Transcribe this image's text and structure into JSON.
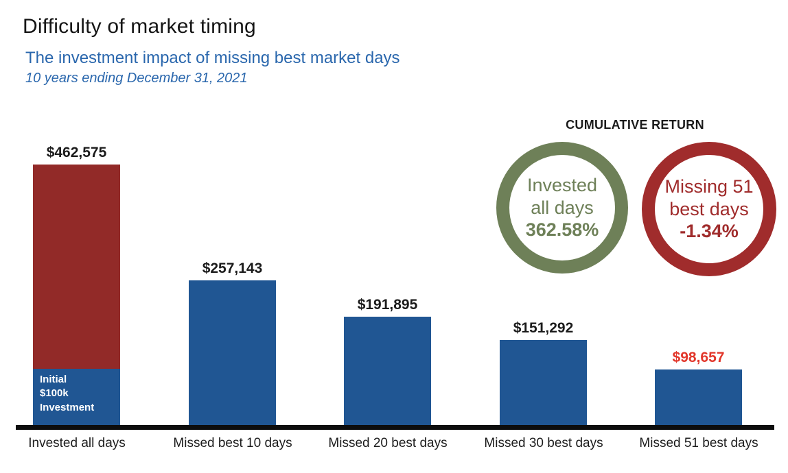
{
  "header": {
    "title": "Difficulty of market timing",
    "subtitle": "The investment impact of missing best market days",
    "period": "10 years ending December 31, 2021"
  },
  "cumulative_return": {
    "heading": "CUMULATIVE RETURN",
    "circles": [
      {
        "name": "invested-all-days",
        "line1": "Invested",
        "line2": "all days",
        "value": "362.58%",
        "color": "#6e8058"
      },
      {
        "name": "missing-51-best-days",
        "line1": "Missing 51",
        "line2": "best days",
        "value": "-1.34%",
        "color": "#a02c2c"
      }
    ]
  },
  "chart_data": {
    "type": "bar",
    "title": "Difficulty of market timing",
    "subtitle": "The investment impact of missing best market days",
    "period": "10 years ending December 31, 2021",
    "categories": [
      "Invested all days",
      "Missed best 10 days",
      "Missed 20 best days",
      "Missed 30 best days",
      "Missed 51 best days"
    ],
    "values": [
      462575,
      257143,
      191895,
      151292,
      98657
    ],
    "value_labels": [
      "$462,575",
      "$257,143",
      "$191,895",
      "$151,292",
      "$98,657"
    ],
    "bar_colors": [
      "#922a28",
      "#205693",
      "#205693",
      "#205693",
      "#205693"
    ],
    "value_label_colors": [
      "#1b1b1b",
      "#1b1b1b",
      "#1b1b1b",
      "#1b1b1b",
      "#e2372b"
    ],
    "initial_investment": {
      "bar_index": 0,
      "value": 100000,
      "lines": [
        "Initial",
        "$100k",
        "Investment"
      ],
      "color": "#205693",
      "text_color": "#ffffff"
    },
    "ylim": [
      0,
      480000
    ],
    "grid": false,
    "legend": "none",
    "cumulative_returns": [
      {
        "label": "Invested all days",
        "value_pct": 362.58
      },
      {
        "label": "Missing 51 best days",
        "value_pct": -1.34
      }
    ]
  },
  "colors": {
    "bar_blue": "#205693",
    "bar_red": "#922a28",
    "circle_green": "#6e8058",
    "circle_red": "#a02c2c",
    "highlight_red": "#e2372b",
    "subtitle_blue": "#2a67ad",
    "axis_black": "#0d0d0d"
  }
}
